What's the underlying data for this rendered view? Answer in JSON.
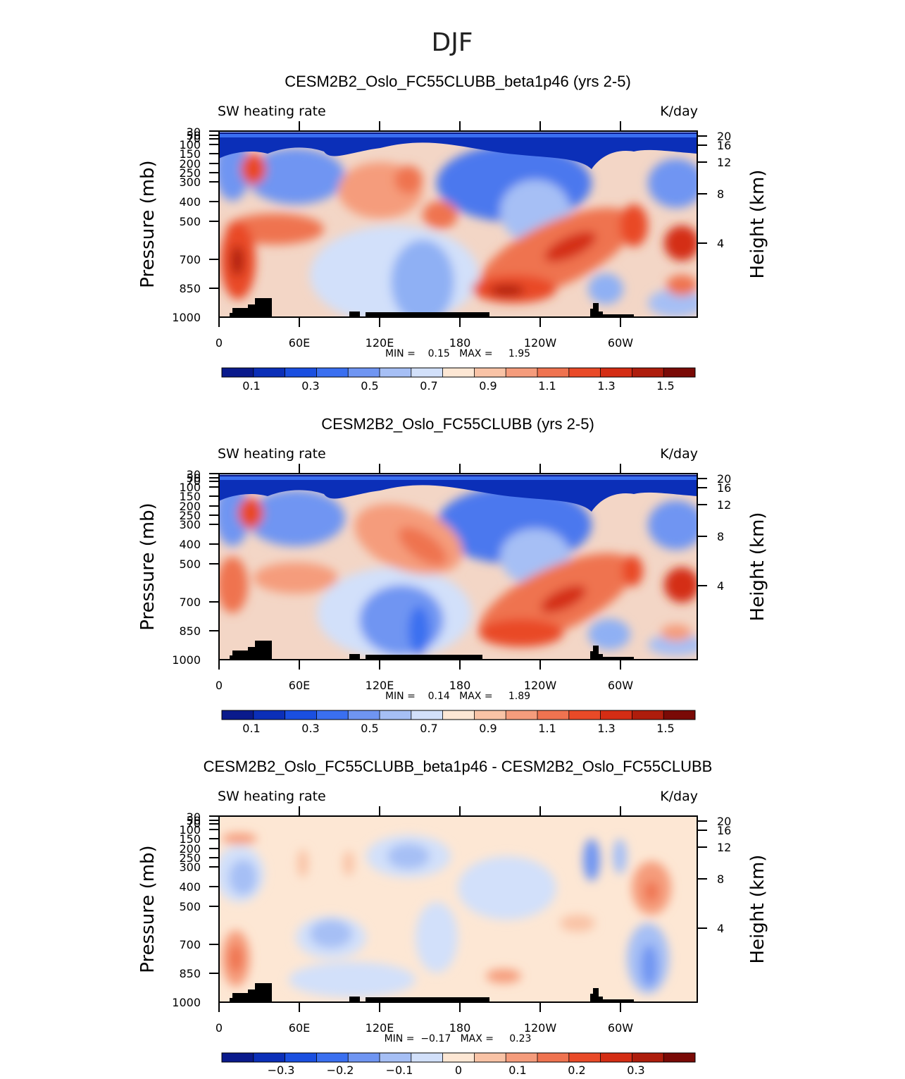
{
  "figure_title": "DJF",
  "chart_data": [
    {
      "type": "heatmap",
      "title": "CESM2B2_Oslo_FC55CLUBB_beta1p46 (yrs 2-5)",
      "left_label": "SW heating rate",
      "right_label": "K/day",
      "ylabel": "Pressure (mb)",
      "ylabel_right": "Height (km)",
      "x_ticks": [
        "0",
        "60E",
        "120E",
        "180",
        "120W",
        "60W"
      ],
      "y_ticks": [
        "30",
        "50",
        "70",
        "100",
        "150",
        "200",
        "250",
        "300",
        "400",
        "500",
        "700",
        "850",
        "1000"
      ],
      "y_ticks_right": [
        "20",
        "16",
        "12",
        "8",
        "4"
      ],
      "min_max_text": "MIN =    0.15   MAX =     1.95",
      "min": 0.15,
      "max": 1.95,
      "colorbar_labels": [
        "0.1",
        "0.3",
        "0.5",
        "0.7",
        "0.9",
        "1.1",
        "1.3",
        "1.5"
      ],
      "colorbar_colors": [
        "#0a1a8c",
        "#0b2fb8",
        "#1a4fe0",
        "#3a6ff0",
        "#6f95f2",
        "#a6bff5",
        "#d2e0fa",
        "#fde7d4",
        "#f9c3a6",
        "#f59c7c",
        "#ef7350",
        "#e94a28",
        "#d42d14",
        "#ae1d0c",
        "#7a0a06"
      ]
    },
    {
      "type": "heatmap",
      "title": "CESM2B2_Oslo_FC55CLUBB (yrs 2-5)",
      "left_label": "SW heating rate",
      "right_label": "K/day",
      "ylabel": "Pressure (mb)",
      "ylabel_right": "Height (km)",
      "x_ticks": [
        "0",
        "60E",
        "120E",
        "180",
        "120W",
        "60W"
      ],
      "y_ticks": [
        "30",
        "50",
        "70",
        "100",
        "150",
        "200",
        "250",
        "300",
        "400",
        "500",
        "700",
        "850",
        "1000"
      ],
      "y_ticks_right": [
        "20",
        "16",
        "12",
        "8",
        "4"
      ],
      "min_max_text": "MIN =    0.14   MAX =     1.89",
      "min": 0.14,
      "max": 1.89,
      "colorbar_labels": [
        "0.1",
        "0.3",
        "0.5",
        "0.7",
        "0.9",
        "1.1",
        "1.3",
        "1.5"
      ],
      "colorbar_colors": [
        "#0a1a8c",
        "#0b2fb8",
        "#1a4fe0",
        "#3a6ff0",
        "#6f95f2",
        "#a6bff5",
        "#d2e0fa",
        "#fde7d4",
        "#f9c3a6",
        "#f59c7c",
        "#ef7350",
        "#e94a28",
        "#d42d14",
        "#ae1d0c",
        "#7a0a06"
      ]
    },
    {
      "type": "heatmap",
      "title": "CESM2B2_Oslo_FC55CLUBB_beta1p46 - CESM2B2_Oslo_FC55CLUBB",
      "left_label": "SW heating rate",
      "right_label": "K/day",
      "ylabel": "Pressure (mb)",
      "ylabel_right": "Height (km)",
      "x_ticks": [
        "0",
        "60E",
        "120E",
        "180",
        "120W",
        "60W"
      ],
      "y_ticks": [
        "30",
        "50",
        "70",
        "100",
        "150",
        "200",
        "250",
        "300",
        "400",
        "500",
        "700",
        "850",
        "1000"
      ],
      "y_ticks_right": [
        "20",
        "16",
        "12",
        "8",
        "4"
      ],
      "min_max_text": "MIN =  −0.17   MAX =     0.23",
      "min": -0.17,
      "max": 0.23,
      "colorbar_labels": [
        "−0.3",
        "−0.2",
        "−0.1",
        "0",
        "0.1",
        "0.2",
        "0.3"
      ],
      "colorbar_colors": [
        "#0a1a8c",
        "#0b2fb8",
        "#1a4fe0",
        "#3a6ff0",
        "#6f95f2",
        "#a6bff5",
        "#d2e0fa",
        "#fde7d4",
        "#f9c3a6",
        "#f59c7c",
        "#ef7350",
        "#e94a28",
        "#d42d14",
        "#ae1d0c",
        "#7a0a06"
      ]
    }
  ]
}
